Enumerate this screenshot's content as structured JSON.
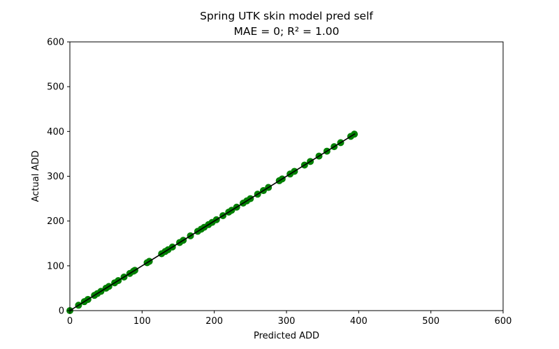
{
  "chart_data": {
    "type": "scatter",
    "title": "Spring UTK skin model pred self",
    "subtitle": "MAE = 0; R² = 1.00",
    "xlabel": "Predicted ADD",
    "ylabel": "Actual ADD",
    "xlim": [
      0,
      600
    ],
    "ylim": [
      0,
      600
    ],
    "xticks": [
      "0",
      "100",
      "200",
      "300",
      "400",
      "500",
      "600"
    ],
    "yticks": [
      "0",
      "100",
      "200",
      "300",
      "400",
      "500",
      "600"
    ],
    "grid": false,
    "point_color": "#008000",
    "line_color": "#000000",
    "fit_line": {
      "x": [
        0,
        395
      ],
      "y": [
        0,
        395
      ]
    },
    "series": [
      {
        "x": [
          0,
          12,
          20,
          25,
          34,
          38,
          43,
          50,
          54,
          62,
          67,
          75,
          83,
          88,
          90,
          107,
          110,
          127,
          132,
          136,
          142,
          152,
          157,
          167,
          177,
          182,
          186,
          192,
          197,
          203,
          212,
          220,
          224,
          231,
          240,
          245,
          250,
          260,
          268,
          275,
          290,
          294,
          305,
          311,
          325,
          333,
          345,
          356,
          366,
          375,
          389,
          394
        ],
        "y": [
          0,
          12,
          20,
          25,
          34,
          38,
          43,
          50,
          54,
          62,
          67,
          75,
          83,
          88,
          90,
          107,
          110,
          127,
          132,
          136,
          142,
          152,
          157,
          167,
          177,
          182,
          186,
          192,
          197,
          203,
          212,
          220,
          224,
          231,
          240,
          245,
          250,
          260,
          268,
          275,
          290,
          294,
          305,
          311,
          325,
          333,
          345,
          356,
          366,
          375,
          389,
          394
        ]
      }
    ]
  }
}
